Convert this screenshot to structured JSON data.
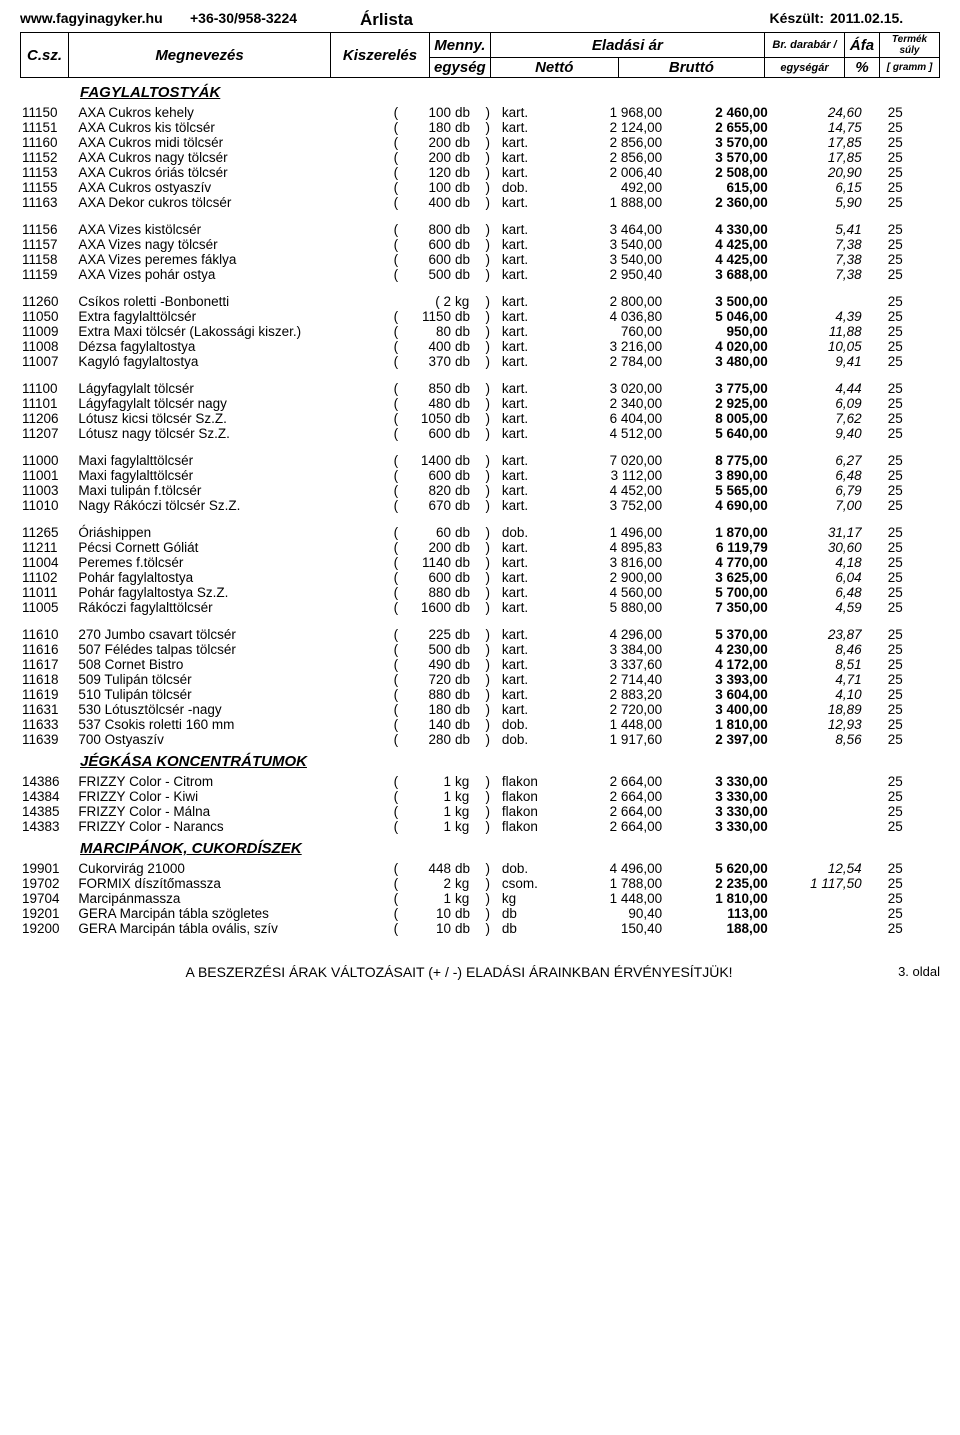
{
  "header": {
    "site": "www.fagyinagyker.hu",
    "phone": "+36-30/958-3224",
    "title": "Árlista",
    "date_label": "Készült:",
    "date": "2011.02.15."
  },
  "columns": {
    "code": "C.sz.",
    "name": "Megnevezés",
    "pack": "Kiszerelés",
    "qty": "Menny.",
    "unit": "egység",
    "price": "Eladási ár",
    "net": "Nettó",
    "gross": "Bruttó",
    "per": "Br. darabár /",
    "perunit": "egységár",
    "vat": "Áfa",
    "vatpct": "%",
    "weight": "Termék súly",
    "weightu": "[ gramm ]"
  },
  "sections": [
    {
      "title": "FAGYLALTOSTYÁK",
      "groups": [
        [
          {
            "code": "11150",
            "name": "AXA Cukros kehely",
            "qty": "100",
            "u": "db",
            "mu": "kart.",
            "net": "1 968,00",
            "gross": "2 460,00",
            "per": "24,60",
            "vat": "25"
          },
          {
            "code": "11151",
            "name": "AXA Cukros kis tölcsér",
            "qty": "180",
            "u": "db",
            "mu": "kart.",
            "net": "2 124,00",
            "gross": "2 655,00",
            "per": "14,75",
            "vat": "25"
          },
          {
            "code": "11160",
            "name": "AXA Cukros midi tölcsér",
            "qty": "200",
            "u": "db",
            "mu": "kart.",
            "net": "2 856,00",
            "gross": "3 570,00",
            "per": "17,85",
            "vat": "25"
          },
          {
            "code": "11152",
            "name": "AXA Cukros nagy tölcsér",
            "qty": "200",
            "u": "db",
            "mu": "kart.",
            "net": "2 856,00",
            "gross": "3 570,00",
            "per": "17,85",
            "vat": "25"
          },
          {
            "code": "11153",
            "name": "AXA Cukros óriás tölcsér",
            "qty": "120",
            "u": "db",
            "mu": "kart.",
            "net": "2 006,40",
            "gross": "2 508,00",
            "per": "20,90",
            "vat": "25"
          },
          {
            "code": "11155",
            "name": "AXA Cukros ostyaszív",
            "qty": "100",
            "u": "db",
            "mu": "dob.",
            "net": "492,00",
            "gross": "615,00",
            "per": "6,15",
            "vat": "25"
          },
          {
            "code": "11163",
            "name": "AXA Dekor cukros tölcsér",
            "qty": "400",
            "u": "db",
            "mu": "kart.",
            "net": "1 888,00",
            "gross": "2 360,00",
            "per": "5,90",
            "vat": "25"
          }
        ],
        [
          {
            "code": "11156",
            "name": "AXA Vizes kistölcsér",
            "qty": "800",
            "u": "db",
            "mu": "kart.",
            "net": "3 464,00",
            "gross": "4 330,00",
            "per": "5,41",
            "vat": "25"
          },
          {
            "code": "11157",
            "name": "AXA Vizes nagy tölcsér",
            "qty": "600",
            "u": "db",
            "mu": "kart.",
            "net": "3 540,00",
            "gross": "4 425,00",
            "per": "7,38",
            "vat": "25"
          },
          {
            "code": "11158",
            "name": "AXA Vizes peremes fáklya",
            "qty": "600",
            "u": "db",
            "mu": "kart.",
            "net": "3 540,00",
            "gross": "4 425,00",
            "per": "7,38",
            "vat": "25"
          },
          {
            "code": "11159",
            "name": "AXA Vizes pohár ostya",
            "qty": "500",
            "u": "db",
            "mu": "kart.",
            "net": "2 950,40",
            "gross": "3 688,00",
            "per": "7,38",
            "vat": "25"
          }
        ],
        [
          {
            "code": "11260",
            "name": "Csíkos roletti -Bonbonetti",
            "qty": "2",
            "u": "kg",
            "mu": "kart.",
            "net": "2 800,00",
            "gross": "3 500,00",
            "per": "",
            "vat": "25",
            "alt": true
          },
          {
            "code": "11050",
            "name": "Extra fagylalttölcsér",
            "qty": "1150",
            "u": "db",
            "mu": "kart.",
            "net": "4 036,80",
            "gross": "5 046,00",
            "per": "4,39",
            "vat": "25"
          },
          {
            "code": "11009",
            "name": "Extra Maxi tölcsér  (Lakossági kiszer.)",
            "qty": "80",
            "u": "db",
            "mu": "kart.",
            "net": "760,00",
            "gross": "950,00",
            "per": "11,88",
            "vat": "25"
          },
          {
            "code": "11008",
            "name": "Dézsa fagylaltostya",
            "qty": "400",
            "u": "db",
            "mu": "kart.",
            "net": "3 216,00",
            "gross": "4 020,00",
            "per": "10,05",
            "vat": "25"
          },
          {
            "code": "11007",
            "name": "Kagyló fagylaltostya",
            "qty": "370",
            "u": "db",
            "mu": "kart.",
            "net": "2 784,00",
            "gross": "3 480,00",
            "per": "9,41",
            "vat": "25"
          }
        ],
        [
          {
            "code": "11100",
            "name": "Lágyfagylalt tölcsér",
            "qty": "850",
            "u": "db",
            "mu": "kart.",
            "net": "3 020,00",
            "gross": "3 775,00",
            "per": "4,44",
            "vat": "25"
          },
          {
            "code": "11101",
            "name": "Lágyfagylalt tölcsér nagy",
            "qty": "480",
            "u": "db",
            "mu": "kart.",
            "net": "2 340,00",
            "gross": "2 925,00",
            "per": "6,09",
            "vat": "25"
          },
          {
            "code": "11206",
            "name": "Lótusz kicsi tölcsér Sz.Z.",
            "qty": "1050",
            "u": "db",
            "mu": "kart.",
            "net": "6 404,00",
            "gross": "8 005,00",
            "per": "7,62",
            "vat": "25"
          },
          {
            "code": "11207",
            "name": "Lótusz nagy tölcsér Sz.Z.",
            "qty": "600",
            "u": "db",
            "mu": "kart.",
            "net": "4 512,00",
            "gross": "5 640,00",
            "per": "9,40",
            "vat": "25"
          }
        ],
        [
          {
            "code": "11000",
            "name": "Maxi fagylalttölcsér",
            "qty": "1400",
            "u": "db",
            "mu": "kart.",
            "net": "7 020,00",
            "gross": "8 775,00",
            "per": "6,27",
            "vat": "25"
          },
          {
            "code": "11001",
            "name": "Maxi fagylalttölcsér",
            "qty": "600",
            "u": "db",
            "mu": "kart.",
            "net": "3 112,00",
            "gross": "3 890,00",
            "per": "6,48",
            "vat": "25"
          },
          {
            "code": "11003",
            "name": "Maxi tulipán f.tölcsér",
            "qty": "820",
            "u": "db",
            "mu": "kart.",
            "net": "4 452,00",
            "gross": "5 565,00",
            "per": "6,79",
            "vat": "25"
          },
          {
            "code": "11010",
            "name": "Nagy Rákóczi tölcsér Sz.Z.",
            "qty": "670",
            "u": "db",
            "mu": "kart.",
            "net": "3 752,00",
            "gross": "4 690,00",
            "per": "7,00",
            "vat": "25"
          }
        ],
        [
          {
            "code": "11265",
            "name": "Óriáshippen",
            "qty": "60",
            "u": "db",
            "mu": "dob.",
            "net": "1 496,00",
            "gross": "1 870,00",
            "per": "31,17",
            "vat": "25"
          },
          {
            "code": "11211",
            "name": "Pécsi Cornett Góliát",
            "qty": "200",
            "u": "db",
            "mu": "kart.",
            "net": "4 895,83",
            "gross": "6 119,79",
            "per": "30,60",
            "vat": "25"
          },
          {
            "code": "11004",
            "name": "Peremes f.tölcsér",
            "qty": "1140",
            "u": "db",
            "mu": "kart.",
            "net": "3 816,00",
            "gross": "4 770,00",
            "per": "4,18",
            "vat": "25"
          },
          {
            "code": "11102",
            "name": "Pohár fagylaltostya",
            "qty": "600",
            "u": "db",
            "mu": "kart.",
            "net": "2 900,00",
            "gross": "3 625,00",
            "per": "6,04",
            "vat": "25"
          },
          {
            "code": "11011",
            "name": "Pohár fagylaltostya Sz.Z.",
            "qty": "880",
            "u": "db",
            "mu": "kart.",
            "net": "4 560,00",
            "gross": "5 700,00",
            "per": "6,48",
            "vat": "25"
          },
          {
            "code": "11005",
            "name": "Rákóczi fagylalttölcsér",
            "qty": "1600",
            "u": "db",
            "mu": "kart.",
            "net": "5 880,00",
            "gross": "7 350,00",
            "per": "4,59",
            "vat": "25"
          }
        ],
        [
          {
            "code": "11610",
            "name": "270 Jumbo csavart tölcsér",
            "qty": "225",
            "u": "db",
            "mu": "kart.",
            "net": "4 296,00",
            "gross": "5 370,00",
            "per": "23,87",
            "vat": "25"
          },
          {
            "code": "11616",
            "name": "507 Félédes talpas tölcsér",
            "qty": "500",
            "u": "db",
            "mu": "kart.",
            "net": "3 384,00",
            "gross": "4 230,00",
            "per": "8,46",
            "vat": "25"
          },
          {
            "code": "11617",
            "name": "508 Cornet Bistro",
            "qty": "490",
            "u": "db",
            "mu": "kart.",
            "net": "3 337,60",
            "gross": "4 172,00",
            "per": "8,51",
            "vat": "25"
          },
          {
            "code": "11618",
            "name": "509 Tulipán tölcsér",
            "qty": "720",
            "u": "db",
            "mu": "kart.",
            "net": "2 714,40",
            "gross": "3 393,00",
            "per": "4,71",
            "vat": "25"
          },
          {
            "code": "11619",
            "name": "510 Tulipán tölcsér",
            "qty": "880",
            "u": "db",
            "mu": "kart.",
            "net": "2 883,20",
            "gross": "3 604,00",
            "per": "4,10",
            "vat": "25"
          },
          {
            "code": "11631",
            "name": "530 Lótusztölcsér -nagy",
            "qty": "180",
            "u": "db",
            "mu": "kart.",
            "net": "2 720,00",
            "gross": "3 400,00",
            "per": "18,89",
            "vat": "25"
          },
          {
            "code": "11633",
            "name": "537 Csokis roletti 160 mm",
            "qty": "140",
            "u": "db",
            "mu": "dob.",
            "net": "1 448,00",
            "gross": "1 810,00",
            "per": "12,93",
            "vat": "25"
          },
          {
            "code": "11639",
            "name": "700 Ostyaszív",
            "qty": "280",
            "u": "db",
            "mu": "dob.",
            "net": "1 917,60",
            "gross": "2 397,00",
            "per": "8,56",
            "vat": "25"
          }
        ]
      ]
    },
    {
      "title": "JÉGKÁSA KONCENTRÁTUMOK",
      "groups": [
        [
          {
            "code": "14386",
            "name": "FRIZZY Color  - Citrom",
            "qty": "1",
            "u": "kg",
            "mu": "flakon",
            "net": "2 664,00",
            "gross": "3 330,00",
            "per": "",
            "vat": "25"
          },
          {
            "code": "14384",
            "name": "FRIZZY Color  - Kiwi",
            "qty": "1",
            "u": "kg",
            "mu": "flakon",
            "net": "2 664,00",
            "gross": "3 330,00",
            "per": "",
            "vat": "25"
          },
          {
            "code": "14385",
            "name": "FRIZZY Color  - Málna",
            "qty": "1",
            "u": "kg",
            "mu": "flakon",
            "net": "2 664,00",
            "gross": "3 330,00",
            "per": "",
            "vat": "25"
          },
          {
            "code": "14383",
            "name": "FRIZZY Color  - Narancs",
            "qty": "1",
            "u": "kg",
            "mu": "flakon",
            "net": "2 664,00",
            "gross": "3 330,00",
            "per": "",
            "vat": "25"
          }
        ]
      ]
    },
    {
      "title": "MARCIPÁNOK,  CUKORDÍSZEK",
      "groups": [
        [
          {
            "code": "19901",
            "name": "Cukorvirág 21000",
            "qty": "448",
            "u": "db",
            "mu": "dob.",
            "net": "4 496,00",
            "gross": "5 620,00",
            "per": "12,54",
            "vat": "25"
          },
          {
            "code": "19702",
            "name": "FORMIX díszítőmassza",
            "qty": "2",
            "u": "kg",
            "mu": "csom.",
            "net": "1 788,00",
            "gross": "2 235,00",
            "per": "1 117,50",
            "vat": "25"
          },
          {
            "code": "19704",
            "name": "Marcipánmassza",
            "qty": "1",
            "u": "kg",
            "mu": "kg",
            "net": "1 448,00",
            "gross": "1 810,00",
            "per": "",
            "vat": "25"
          },
          {
            "code": "19201",
            "name": "GERA Marcipán tábla szögletes",
            "qty": "10",
            "u": "db",
            "mu": "db",
            "net": "90,40",
            "gross": "113,00",
            "per": "",
            "vat": "25"
          },
          {
            "code": "19200",
            "name": "GERA Marcipán tábla ovális, szív",
            "qty": "10",
            "u": "db",
            "mu": "db",
            "net": "150,40",
            "gross": "188,00",
            "per": "",
            "vat": "25"
          }
        ]
      ]
    }
  ],
  "footer": {
    "text": "A BESZERZÉSI ÁRAK VÁLTOZÁSAIT (+ / -) ELADÁSI ÁRAINKBAN ÉRVÉNYESÍTJÜK!",
    "page": "3. oldal"
  }
}
